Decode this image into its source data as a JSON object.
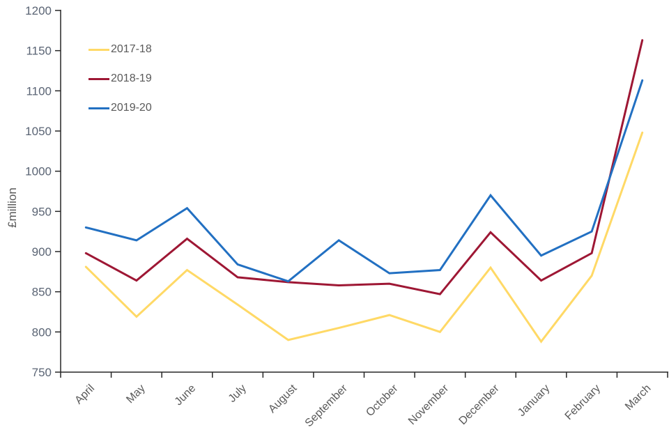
{
  "chart_data": {
    "type": "line",
    "title": "",
    "xlabel": "",
    "ylabel": "£million",
    "categories": [
      "April",
      "May",
      "June",
      "July",
      "August",
      "September",
      "October",
      "November",
      "December",
      "January",
      "February",
      "March"
    ],
    "series": [
      {
        "name": "2017-18",
        "color": "#FFD966",
        "values": [
          881,
          819,
          877,
          834,
          790,
          805,
          821,
          800,
          880,
          788,
          870,
          1048
        ]
      },
      {
        "name": "2018-19",
        "color": "#9E1734",
        "values": [
          898,
          864,
          916,
          868,
          862,
          858,
          860,
          847,
          924,
          864,
          898,
          1163
        ]
      },
      {
        "name": "2019-20",
        "color": "#2270C2",
        "values": [
          930,
          914,
          954,
          884,
          863,
          914,
          873,
          877,
          970,
          895,
          925,
          1113
        ]
      }
    ],
    "y_axis": {
      "min": 750,
      "max": 1200,
      "step": 50,
      "tick_labels": [
        "750",
        "800",
        "850",
        "900",
        "950",
        "1000",
        "1050",
        "1100",
        "1150",
        "1200"
      ]
    },
    "x_axis": {
      "label_rotation_deg": -45
    },
    "legend_position": "top-left",
    "grid": false
  },
  "style": {
    "axis_color": "#262626",
    "y_tick_text_color": "#5A6474",
    "x_label_text_color": "#595959",
    "legend_text_color": "#595959",
    "line_width": 3
  }
}
